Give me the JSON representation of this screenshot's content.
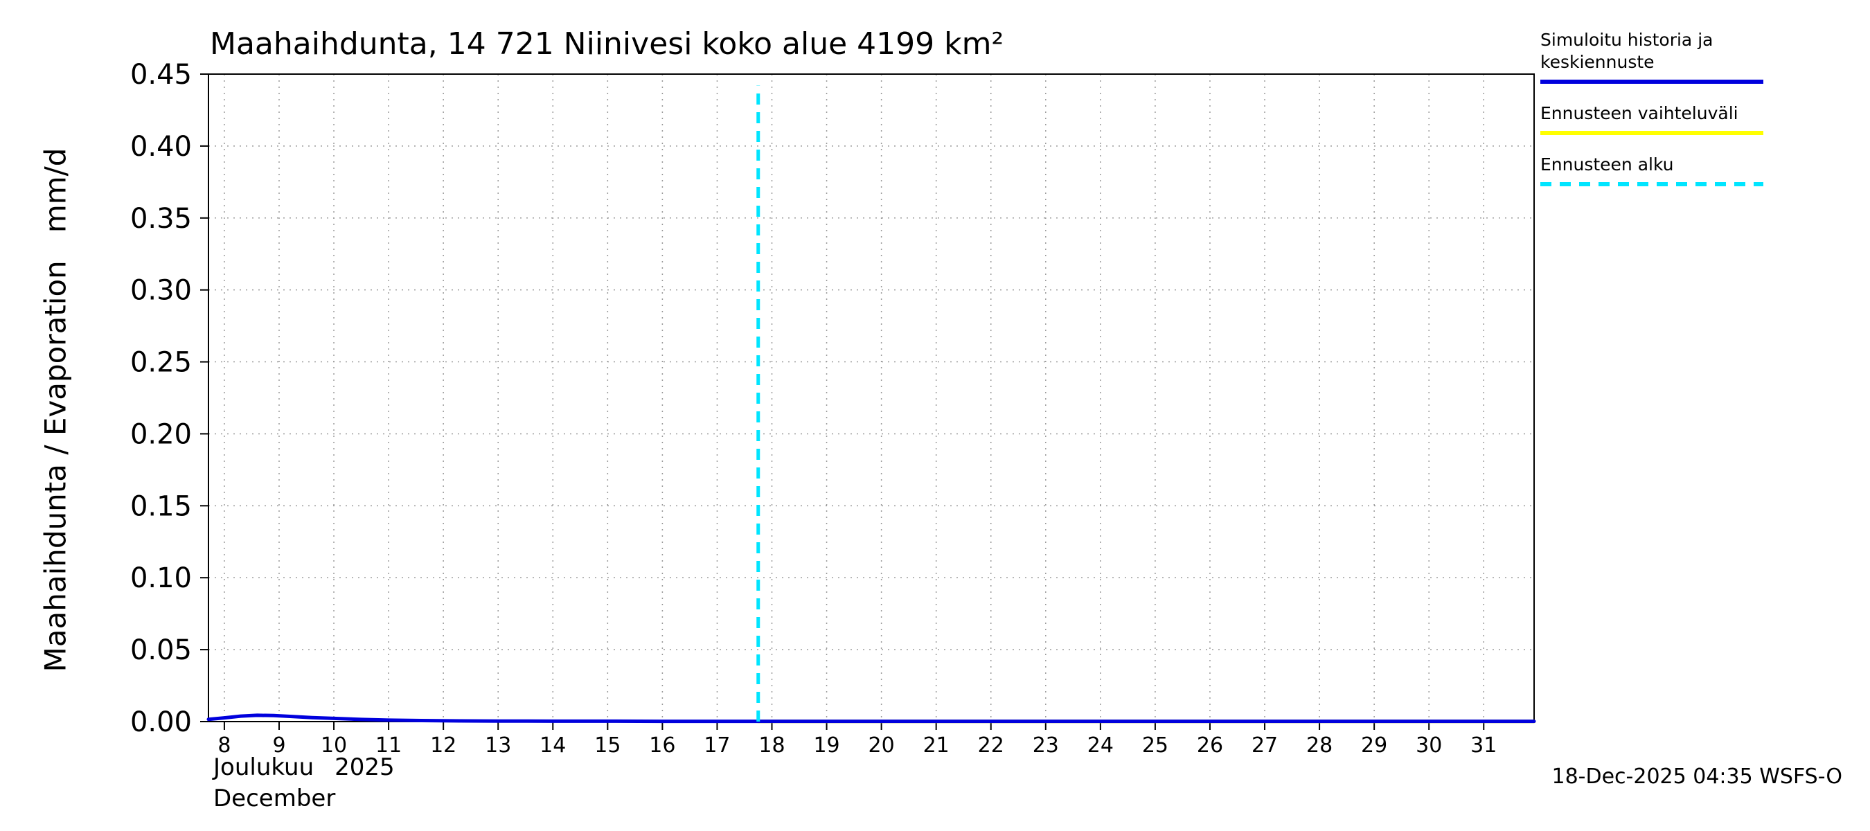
{
  "chart_data": {
    "type": "line",
    "title": "Maahaihdunta, 14 721 Niinivesi koko alue 4199 km²",
    "ylabel": "Maahaihdunta / Evaporation   mm/d",
    "xaxis": {
      "month_fi": "Joulukuu",
      "year": "2025",
      "month_en": "December"
    },
    "timestamp": "18-Dec-2025 04:35 WSFS-O",
    "ylim": [
      0,
      0.45
    ],
    "ytick_step": 0.05,
    "xlim": [
      7.71,
      31.92
    ],
    "xticks": [
      8,
      9,
      10,
      11,
      12,
      13,
      14,
      15,
      16,
      17,
      18,
      19,
      20,
      21,
      22,
      23,
      24,
      25,
      26,
      27,
      28,
      29,
      30,
      31
    ],
    "grid": true,
    "legend_position": "top-right",
    "forecast_start": {
      "x": 17.75,
      "top": 0.442,
      "color": "#00e5ff"
    },
    "legend": [
      {
        "label": "Simuloitu historia ja keskiennuste",
        "color": "#0000dd",
        "style": "solid"
      },
      {
        "label": "Ennusteen vaihteluväli",
        "color": "#ffff00",
        "style": "solid"
      },
      {
        "label": "Ennusteen alku",
        "color": "#00e5ff",
        "style": "dashed"
      }
    ],
    "series": [
      {
        "id": "forecast_range",
        "name": "Ennusteen vaihteluväli",
        "color": "#ffff00",
        "x": [
          17.75,
          31.92
        ],
        "y": [
          0.0001,
          0.0001
        ]
      },
      {
        "id": "history_mean",
        "name": "Simuloitu historia ja keskiennuste",
        "color": "#0000dd",
        "x": [
          7.71,
          8.0,
          8.3,
          8.6,
          8.9,
          9.2,
          9.6,
          10.0,
          10.5,
          11.0,
          11.6,
          12.3,
          13.0,
          14.0,
          15.0,
          16.0,
          17.0,
          17.75,
          18.5,
          19.5,
          20.5,
          21.5,
          22.5,
          23.5,
          24.5,
          25.5,
          26.5,
          27.5,
          28.5,
          29.5,
          30.5,
          31.92
        ],
        "y": [
          0.0016,
          0.0026,
          0.0038,
          0.0044,
          0.0042,
          0.0036,
          0.0028,
          0.0022,
          0.0015,
          0.001,
          0.0007,
          0.0005,
          0.0004,
          0.0003,
          0.0003,
          0.0002,
          0.0002,
          0.0002,
          0.0002,
          0.0002,
          0.0002,
          0.0002,
          0.0002,
          0.0002,
          0.0002,
          0.0002,
          0.0002,
          0.0002,
          0.0002,
          0.0002,
          0.0002,
          0.0002
        ]
      }
    ]
  }
}
